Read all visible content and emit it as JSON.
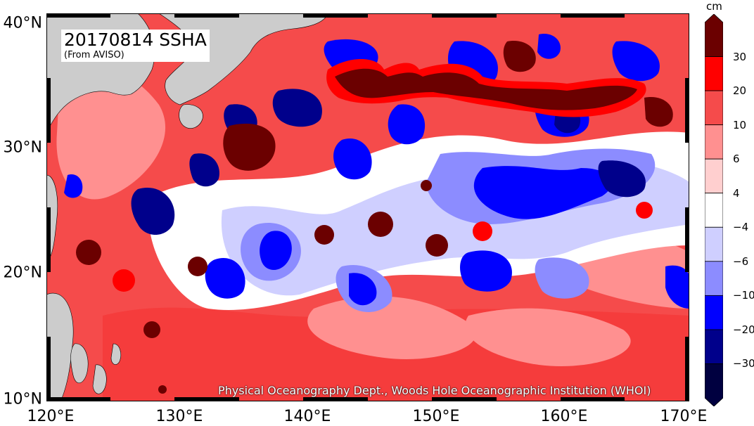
{
  "map": {
    "title": "20170814 SSHA",
    "subtitle": "(From AVISO)",
    "credit": "Physical Oceanography Dept., Woods Hole Oceanographic Institution (WHOI)",
    "lon_ticks": [
      "120°E",
      "130°E",
      "140°E",
      "150°E",
      "160°E",
      "170°E"
    ],
    "lat_ticks": [
      "40°N",
      "30°N",
      "20°N",
      "10°N"
    ],
    "lon_range": [
      120,
      170
    ],
    "lat_range": [
      10,
      40
    ],
    "colors": {
      "land": "#cccccc",
      "deep_red": "#6b0000",
      "red": "#ff0000",
      "mid_red": "#f54b4b",
      "light_red": "#ff9090",
      "pale_red": "#ffcfcf",
      "white": "#ffffff",
      "pale_blue": "#cfcfff",
      "light_blue": "#8c8cff",
      "blue": "#0000ff",
      "dark_blue": "#00008b",
      "navy": "#000040"
    }
  },
  "colorbar": {
    "unit": "cm",
    "labels": [
      "30",
      "20",
      "10",
      "6",
      "4",
      "−4",
      "−6",
      "−10",
      "−20",
      "−30"
    ]
  }
}
